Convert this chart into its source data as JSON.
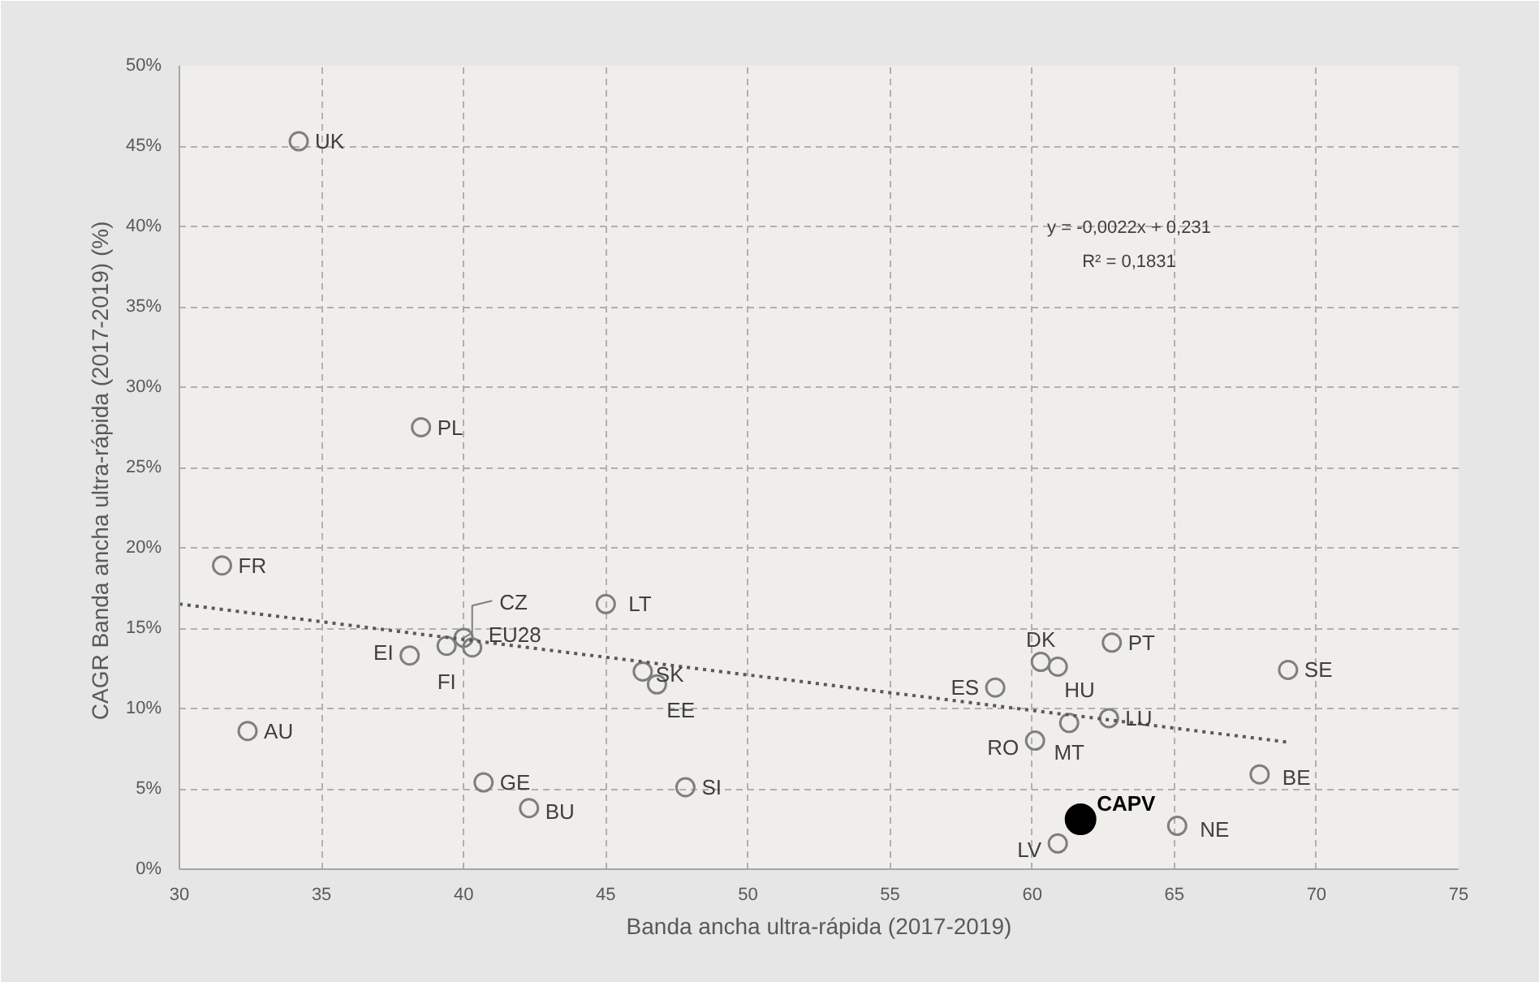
{
  "chart_data": {
    "type": "scatter",
    "xlabel": "Banda ancha ultra-rápida (2017-2019)",
    "ylabel": "CAGR Banda ancha ultra-rápida  (2017-2019) (%)",
    "xlim": [
      30,
      75
    ],
    "xticks": [
      30,
      35,
      40,
      45,
      50,
      55,
      60,
      65,
      70,
      75
    ],
    "ylim": [
      0,
      50
    ],
    "yticks": [
      {
        "value": 0,
        "label": "0%"
      },
      {
        "value": 5,
        "label": "5%"
      },
      {
        "value": 10,
        "label": "10%"
      },
      {
        "value": 15,
        "label": "15%"
      },
      {
        "value": 20,
        "label": "20%"
      },
      {
        "value": 25,
        "label": "25%"
      },
      {
        "value": 30,
        "label": "30%"
      },
      {
        "value": 35,
        "label": "35%"
      },
      {
        "value": 40,
        "label": "40%"
      },
      {
        "value": 45,
        "label": "45%"
      },
      {
        "value": 50,
        "label": "50%"
      }
    ],
    "grid": true,
    "marker": "circle",
    "series": [
      {
        "color": "#7f7f7f",
        "x": [
          34.2,
          38.5,
          31.5,
          32.4,
          38.1,
          39.4,
          40.0,
          40.3,
          45.0,
          46.3,
          46.8,
          40.7,
          42.3,
          47.8,
          58.7,
          60.3,
          60.9,
          62.8,
          69.0,
          62.7,
          61.3,
          60.1,
          68.0,
          65.1,
          60.9
        ],
        "values": [
          45.3,
          27.5,
          18.9,
          8.6,
          13.3,
          13.9,
          14.4,
          13.8,
          16.5,
          12.3,
          11.5,
          5.4,
          3.8,
          5.1,
          11.3,
          12.9,
          12.6,
          14.1,
          12.4,
          9.4,
          9.1,
          8.0,
          5.9,
          2.7,
          1.6
        ],
        "value_labels": [
          "UK",
          "PL",
          "FR",
          "AU",
          "EI",
          "FI",
          "CZ",
          "EU28",
          "LT",
          "SK",
          "EE",
          "GE",
          "BU",
          "SI",
          "ES",
          "DK",
          "HU",
          "PT",
          "SE",
          "LU",
          "MT",
          "RO",
          "BE",
          "NE",
          "LV"
        ]
      },
      {
        "color": "#000000",
        "x": [
          61.7
        ],
        "values": [
          3.1
        ],
        "value_labels": [
          "CAPV"
        ]
      },
      {
        "type": "line",
        "color": "#595959",
        "line_style": "dotted",
        "marker": "none",
        "x": [
          30,
          69
        ],
        "values": [
          16.5,
          7.9
        ]
      }
    ],
    "annotations": [
      "y = -0,0022x + 0,231",
      "R² = 0,1831"
    ]
  }
}
